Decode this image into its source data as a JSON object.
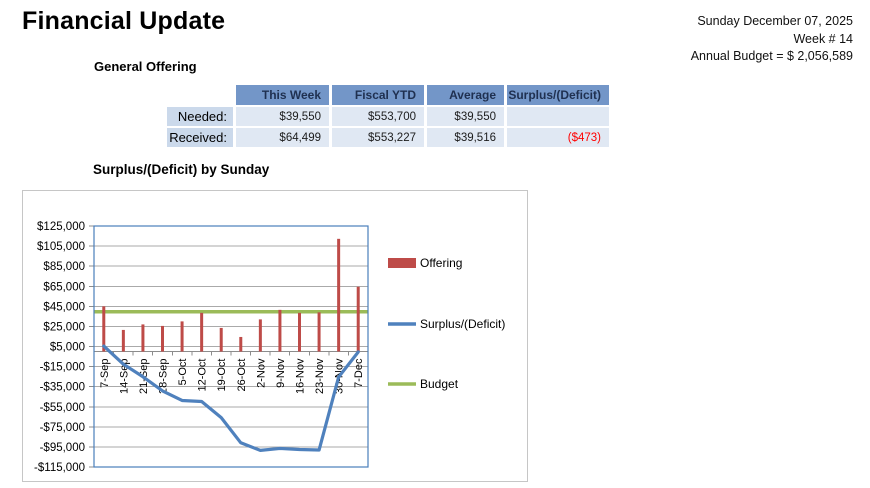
{
  "page_title": "Financial Update",
  "meta": {
    "date_line": "Sunday December 07, 2025",
    "week_line": "Week # 14",
    "budget_line": "Annual Budget = $ 2,056,589"
  },
  "section": {
    "heading": "General Offering"
  },
  "table": {
    "columns": [
      "This Week",
      "Fiscal YTD",
      "Average",
      "Surplus/(Deficit)"
    ],
    "rows": [
      {
        "label": "Needed:",
        "values": [
          "$39,550",
          "$553,700",
          "$39,550",
          ""
        ]
      },
      {
        "label": "Received:",
        "values": [
          "$64,499",
          "$553,227",
          "$39,516",
          "($473)"
        ]
      }
    ]
  },
  "colors": {
    "table_header_bg": "#7396C8",
    "table_header_text": "#1F3050",
    "row_label_bg": "#CBD9EB",
    "cell_bg": "#E0E8F3",
    "deficit_text": "#FF0000",
    "gridline_gray": "#AAAAAA",
    "plot_border_blue": "#4A7EBB"
  },
  "chart_data": {
    "type": "combo",
    "title": "Surplus/(Deficit) by Sunday",
    "categories": [
      "7-Sep",
      "14-Sep",
      "21-Sep",
      "28-Sep",
      "5-Oct",
      "12-Oct",
      "19-Oct",
      "26-Oct",
      "2-Nov",
      "9-Nov",
      "16-Nov",
      "23-Nov",
      "30-Nov",
      "7-Dec"
    ],
    "series": [
      {
        "name": "Offering",
        "type": "bar",
        "color": "#BE4B48",
        "values": [
          45000,
          21500,
          27000,
          25500,
          30000,
          38500,
          23500,
          14500,
          32000,
          41500,
          38500,
          39000,
          112228,
          64499
        ]
      },
      {
        "name": "Surplus/(Deficit)",
        "type": "line",
        "color": "#4F81BD",
        "values": [
          5450,
          -12600,
          -25150,
          -39200,
          -48750,
          -49800,
          -65850,
          -90900,
          -98450,
          -96500,
          -97550,
          -98100,
          -25422,
          -473
        ]
      },
      {
        "name": "Budget",
        "type": "line",
        "color": "#9BBB59",
        "values": [
          39550,
          39550,
          39550,
          39550,
          39550,
          39550,
          39550,
          39550,
          39550,
          39550,
          39550,
          39550,
          39550,
          39550
        ]
      }
    ],
    "ylim": [
      -115000,
      125000
    ],
    "ytick_step": 20000,
    "ytick_format": "currency",
    "grid": true,
    "legend_position": "right",
    "x_label_rotation": -90
  }
}
